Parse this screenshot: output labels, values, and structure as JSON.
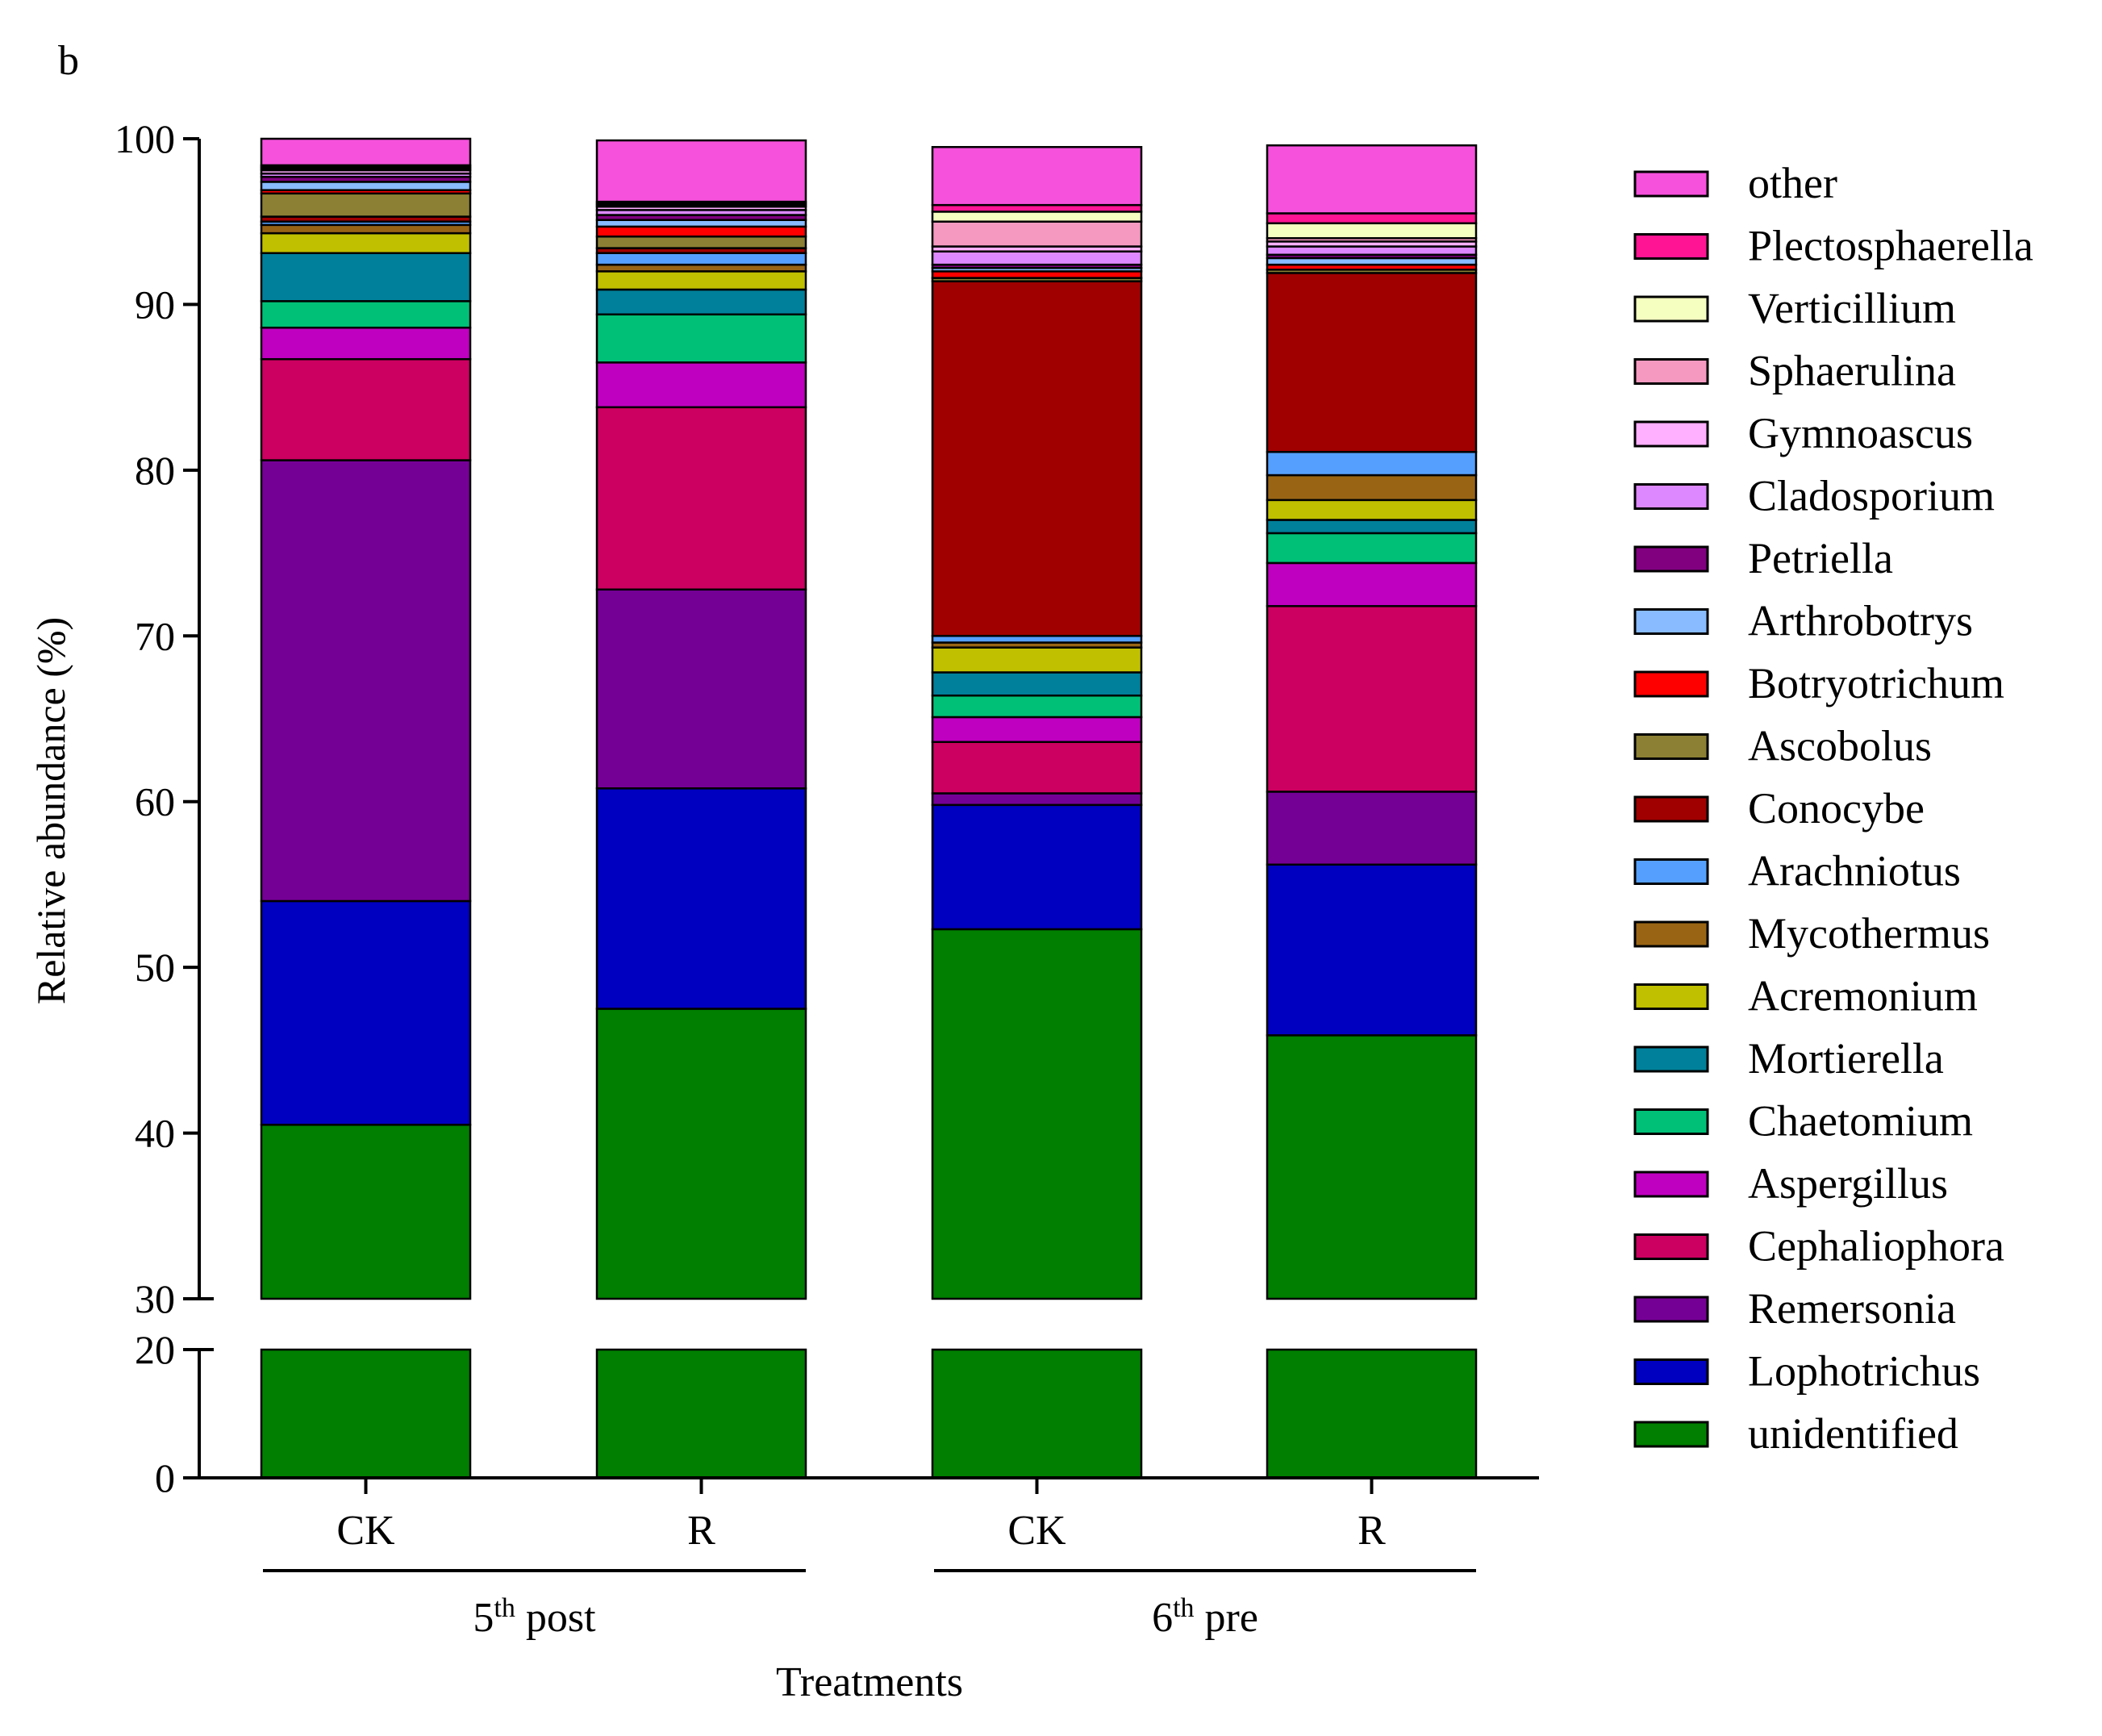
{
  "panel_label": "b",
  "chart_data": {
    "type": "bar",
    "stacked": true,
    "broken_axis": {
      "lower_range": [
        0,
        20
      ],
      "upper_range": [
        30,
        100
      ]
    },
    "ylabel": "Relative abundance (%)",
    "xlabel": "Treatments",
    "y_ticks_lower": [
      0,
      20
    ],
    "y_ticks_upper": [
      30,
      40,
      50,
      60,
      70,
      80,
      90,
      100
    ],
    "categories": [
      "CK",
      "R",
      "CK",
      "R"
    ],
    "groups": [
      {
        "base": "5",
        "sup": "th",
        "rest": " post",
        "members": [
          0,
          1
        ]
      },
      {
        "base": "6",
        "sup": "th",
        "rest": " pre",
        "members": [
          2,
          3
        ]
      }
    ],
    "series": [
      {
        "name": "unidentified",
        "color": "#007F00",
        "values": [
          40.5,
          47.5,
          52.3,
          45.9
        ]
      },
      {
        "name": "Lophotrichus",
        "color": "#0000C0",
        "values": [
          13.5,
          13.3,
          7.5,
          10.3
        ]
      },
      {
        "name": "Remersonia",
        "color": "#750096",
        "values": [
          26.6,
          12.0,
          0.7,
          4.4
        ]
      },
      {
        "name": "Cephaliophora",
        "color": "#CC0060",
        "values": [
          6.1,
          11.0,
          3.1,
          11.2
        ]
      },
      {
        "name": "Aspergillus",
        "color": "#C000C0",
        "values": [
          1.9,
          2.7,
          1.5,
          2.6
        ]
      },
      {
        "name": "Chaetomium",
        "color": "#00C078",
        "values": [
          1.6,
          2.9,
          1.3,
          1.8
        ]
      },
      {
        "name": "Mortierella",
        "color": "#00809A",
        "values": [
          2.9,
          1.5,
          1.4,
          0.8
        ]
      },
      {
        "name": "Acremonium",
        "color": "#C0C000",
        "values": [
          1.2,
          1.1,
          1.5,
          1.2
        ]
      },
      {
        "name": "Mycothermus",
        "color": "#996515",
        "values": [
          0.5,
          0.4,
          0.3,
          1.5
        ]
      },
      {
        "name": "Arachniotus",
        "color": "#55A0FF",
        "values": [
          0.2,
          0.7,
          0.4,
          1.4
        ]
      },
      {
        "name": "Conocybe",
        "color": "#A00000",
        "values": [
          0.3,
          0.3,
          21.4,
          10.8
        ]
      },
      {
        "name": "Ascobolus",
        "color": "#8C8034",
        "values": [
          1.4,
          0.7,
          0.2,
          0.2
        ]
      },
      {
        "name": "Botryotrichum",
        "color": "#FF0000",
        "values": [
          0.2,
          0.6,
          0.4,
          0.3
        ]
      },
      {
        "name": "Arthrobotrys",
        "color": "#88BBFF",
        "values": [
          0.5,
          0.4,
          0.2,
          0.4
        ]
      },
      {
        "name": "Petriella",
        "color": "#800080",
        "values": [
          0.3,
          0.3,
          0.2,
          0.2
        ]
      },
      {
        "name": "Cladosporium",
        "color": "#DD88FF",
        "values": [
          0.2,
          0.3,
          0.8,
          0.5
        ]
      },
      {
        "name": "Gymnoascus",
        "color": "#FFB0FF",
        "values": [
          0.2,
          0.2,
          0.3,
          0.3
        ]
      },
      {
        "name": "Sphaerulina",
        "color": "#F599C0",
        "values": [
          0.1,
          0.1,
          1.5,
          0.2
        ]
      },
      {
        "name": "Verticillium",
        "color": "#F5FFC0",
        "values": [
          0.1,
          0.1,
          0.6,
          0.9
        ]
      },
      {
        "name": "Plectosphaerella",
        "color": "#FF1493",
        "values": [
          0.1,
          0.1,
          0.4,
          0.6
        ]
      },
      {
        "name": "other",
        "color": "#F651DC",
        "values": [
          1.8,
          3.7,
          3.5,
          4.1
        ]
      }
    ]
  }
}
